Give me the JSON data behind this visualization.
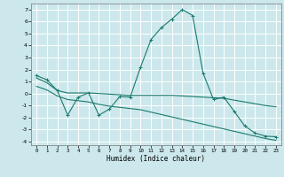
{
  "xlabel": "Humidex (Indice chaleur)",
  "bg_color": "#cce8ec",
  "grid_color": "#ffffff",
  "line_color": "#1a7a6e",
  "xlim": [
    -0.5,
    23.5
  ],
  "ylim": [
    -4.3,
    7.5
  ],
  "xticks": [
    0,
    1,
    2,
    3,
    4,
    5,
    6,
    7,
    8,
    9,
    10,
    11,
    12,
    13,
    14,
    15,
    16,
    17,
    18,
    19,
    20,
    21,
    22,
    23
  ],
  "yticks": [
    -4,
    -3,
    -2,
    -1,
    0,
    1,
    2,
    3,
    4,
    5,
    6,
    7
  ],
  "line1_x": [
    0,
    1,
    2,
    3,
    4,
    5,
    6,
    7,
    8,
    9,
    10,
    11,
    12,
    13,
    14,
    15,
    16,
    17,
    18,
    19,
    20,
    21,
    22,
    23
  ],
  "line1_y": [
    1.5,
    1.15,
    0.25,
    -1.8,
    -0.3,
    0.05,
    -1.8,
    -1.3,
    -0.25,
    -0.3,
    2.2,
    4.5,
    5.5,
    6.2,
    7.0,
    6.5,
    1.7,
    -0.5,
    -0.3,
    -1.5,
    -2.7,
    -3.3,
    -3.55,
    -3.6
  ],
  "line2_x": [
    0,
    1,
    2,
    3,
    4,
    5,
    6,
    7,
    8,
    9,
    10,
    11,
    12,
    13,
    14,
    15,
    16,
    17,
    18,
    19,
    20,
    21,
    22,
    23
  ],
  "line2_y": [
    1.3,
    0.9,
    0.25,
    0.05,
    0.05,
    0.05,
    0.0,
    -0.05,
    -0.1,
    -0.15,
    -0.15,
    -0.15,
    -0.15,
    -0.15,
    -0.2,
    -0.25,
    -0.3,
    -0.35,
    -0.4,
    -0.55,
    -0.7,
    -0.85,
    -1.0,
    -1.1
  ],
  "line3_x": [
    0,
    1,
    2,
    3,
    4,
    5,
    6,
    7,
    8,
    9,
    10,
    11,
    12,
    13,
    14,
    15,
    16,
    17,
    18,
    19,
    20,
    21,
    22,
    23
  ],
  "line3_y": [
    0.6,
    0.3,
    -0.2,
    -0.5,
    -0.6,
    -0.7,
    -0.9,
    -1.05,
    -1.15,
    -1.25,
    -1.35,
    -1.55,
    -1.75,
    -1.95,
    -2.15,
    -2.35,
    -2.55,
    -2.75,
    -2.95,
    -3.15,
    -3.35,
    -3.55,
    -3.75,
    -3.9
  ]
}
